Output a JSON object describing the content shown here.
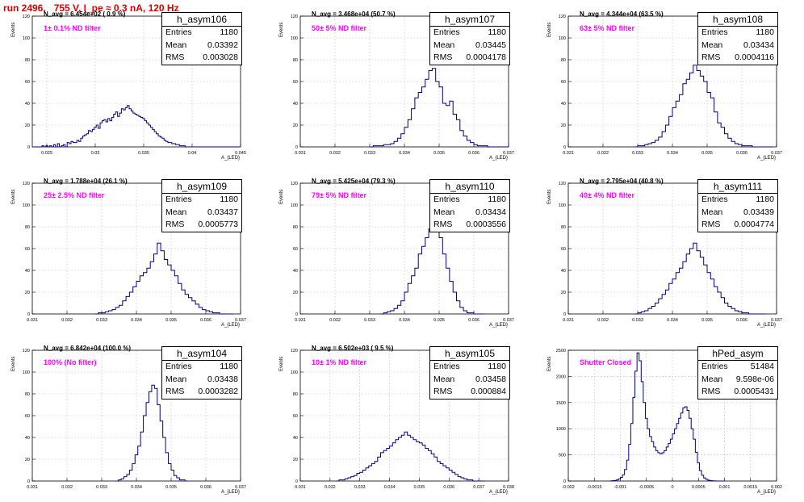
{
  "page": {
    "title": "run 2496,   755 V, I_pe ≈ 0.3 nA, 120 Hz"
  },
  "colors": {
    "histogram": "#000080",
    "grid": "#c8c8c8",
    "title": "#e00000",
    "filter_label": "#ff00ff"
  },
  "chart_data": [
    {
      "type": "bar",
      "name": "h_asym106",
      "ylabel": "Events",
      "xlabel": "A_{LED}",
      "navg": "N_avg = 6.454e+02 ( 0.9 %)",
      "filter": "1± 0.1% ND filter",
      "stats": {
        "entries": "1180",
        "mean": "0.03392",
        "rms": "0.003028"
      },
      "xlim": [
        0.0235,
        0.045
      ],
      "ylim": [
        0,
        120
      ],
      "xticks": [
        0.025,
        0.03,
        0.035,
        0.04,
        0.045
      ],
      "xtick_labels": [
        "0.025",
        "0.03",
        "0.035",
        "0.04",
        "0.045"
      ],
      "yticks": [
        0,
        20,
        40,
        60,
        80,
        100,
        120
      ],
      "bin_lo": 0.0235,
      "bin_width": 0.0002,
      "values": [
        0,
        0,
        0,
        0,
        0,
        1,
        0,
        1,
        0,
        1,
        0,
        2,
        0,
        3,
        0,
        1,
        2,
        0,
        4,
        3,
        5,
        4,
        4,
        6,
        5,
        8,
        10,
        11,
        12,
        15,
        14,
        16,
        18,
        20,
        17,
        22,
        24,
        25,
        23,
        26,
        24,
        27,
        30,
        32,
        28,
        31,
        35,
        34,
        36,
        38,
        35,
        33,
        31,
        30,
        29,
        28,
        27,
        26,
        24,
        22,
        20,
        18,
        16,
        14,
        12,
        10,
        9,
        8,
        6,
        5,
        4,
        4,
        3,
        3,
        2,
        2,
        1,
        1,
        1,
        0,
        0,
        0,
        0,
        0,
        0,
        0,
        0,
        0,
        0,
        0,
        0,
        0,
        0,
        0,
        0,
        0,
        0,
        0,
        0,
        0,
        0,
        0,
        0,
        0,
        0,
        0,
        0
      ]
    },
    {
      "type": "bar",
      "name": "h_asym107",
      "ylabel": "Events",
      "xlabel": "A_{LED}",
      "navg": "N_avg = 3.468e+04 (50.7 %)",
      "filter": "50± 5% ND filter",
      "stats": {
        "entries": "1180",
        "mean": "0.03445",
        "rms": "0.0004178"
      },
      "xlim": [
        0.031,
        0.037
      ],
      "ylim": [
        0,
        120
      ],
      "xticks": [
        0.031,
        0.032,
        0.033,
        0.034,
        0.035,
        0.036,
        0.037
      ],
      "xtick_labels": [
        "0.031",
        "0.032",
        "0.033",
        "0.034",
        "0.035",
        "0.036",
        "0.037"
      ],
      "yticks": [
        0,
        20,
        40,
        60,
        80,
        100,
        120
      ],
      "bin_lo": 0.033,
      "bin_width": 0.0001,
      "values": [
        0,
        1,
        1,
        1,
        2,
        2,
        3,
        5,
        8,
        12,
        18,
        25,
        35,
        45,
        50,
        55,
        62,
        70,
        72,
        60,
        55,
        40,
        38,
        42,
        30,
        25,
        15,
        10,
        6,
        4,
        2,
        1,
        1,
        1,
        0,
        0,
        0,
        0,
        0,
        0
      ]
    },
    {
      "type": "bar",
      "name": "h_asym108",
      "ylabel": "Events",
      "xlabel": "A_{LED}",
      "navg": "N_avg = 4.344e+04 (63.5 %)",
      "filter": "63± 5% ND filter",
      "stats": {
        "entries": "1180",
        "mean": "0.03434",
        "rms": "0.0004116"
      },
      "xlim": [
        0.031,
        0.037
      ],
      "ylim": [
        0,
        120
      ],
      "xticks": [
        0.031,
        0.032,
        0.033,
        0.034,
        0.035,
        0.036,
        0.037
      ],
      "xtick_labels": [
        "0.031",
        "0.032",
        "0.033",
        "0.034",
        "0.035",
        "0.036",
        "0.037"
      ],
      "yticks": [
        0,
        20,
        40,
        60,
        80,
        100,
        120
      ],
      "bin_lo": 0.0329,
      "bin_width": 0.0001,
      "values": [
        0,
        1,
        1,
        2,
        3,
        4,
        6,
        9,
        14,
        20,
        28,
        36,
        42,
        48,
        58,
        62,
        68,
        75,
        70,
        65,
        60,
        50,
        45,
        32,
        22,
        18,
        12,
        8,
        5,
        3,
        2,
        1,
        1,
        1,
        0,
        0,
        0,
        0,
        0,
        0
      ]
    },
    {
      "type": "bar",
      "name": "h_asym109",
      "ylabel": "Events",
      "xlabel": "A_{LED}",
      "navg": "N_avg = 1.788e+04 (26.1 %)",
      "filter": "25± 2.5% ND filter",
      "stats": {
        "entries": "1180",
        "mean": "0.03437",
        "rms": "0.0005773"
      },
      "xlim": [
        0.031,
        0.037
      ],
      "ylim": [
        0,
        120
      ],
      "xticks": [
        0.031,
        0.032,
        0.033,
        0.034,
        0.035,
        0.036,
        0.037
      ],
      "xtick_labels": [
        "0.031",
        "0.032",
        "0.033",
        "0.034",
        "0.035",
        "0.036",
        "0.037"
      ],
      "yticks": [
        0,
        20,
        40,
        60,
        80,
        100,
        120
      ],
      "bin_lo": 0.0328,
      "bin_width": 0.0001,
      "values": [
        0,
        1,
        1,
        2,
        3,
        4,
        6,
        8,
        12,
        16,
        20,
        25,
        30,
        35,
        38,
        42,
        48,
        55,
        65,
        58,
        50,
        45,
        40,
        35,
        28,
        22,
        18,
        15,
        12,
        9,
        6,
        4,
        3,
        2,
        1,
        1,
        0,
        0,
        0,
        0
      ]
    },
    {
      "type": "bar",
      "name": "h_asym110",
      "ylabel": "Events",
      "xlabel": "A_{LED}",
      "navg": "N_avg = 5.425e+04 (79.3 %)",
      "filter": "79± 5% ND filter",
      "stats": {
        "entries": "1180",
        "mean": "0.03434",
        "rms": "0.0003556"
      },
      "xlim": [
        0.031,
        0.037
      ],
      "ylim": [
        0,
        120
      ],
      "xticks": [
        0.031,
        0.032,
        0.033,
        0.034,
        0.035,
        0.036,
        0.037
      ],
      "xtick_labels": [
        "0.031",
        "0.032",
        "0.033",
        "0.034",
        "0.035",
        "0.036",
        "0.037"
      ],
      "yticks": [
        0,
        20,
        40,
        60,
        80,
        100,
        120
      ],
      "bin_lo": 0.0333,
      "bin_width": 0.0001,
      "values": [
        0,
        1,
        2,
        3,
        5,
        8,
        12,
        20,
        28,
        35,
        42,
        55,
        62,
        70,
        78,
        85,
        80,
        70,
        55,
        42,
        30,
        20,
        12,
        6,
        3,
        1,
        1,
        0,
        0,
        0
      ]
    },
    {
      "type": "bar",
      "name": "h_asym111",
      "ylabel": "Events",
      "xlabel": "A_{LED}",
      "navg": "N_avg = 2.795e+04 (40.8 %)",
      "filter": "40± 4% ND filter",
      "stats": {
        "entries": "1180",
        "mean": "0.03439",
        "rms": "0.0004774"
      },
      "xlim": [
        0.031,
        0.037
      ],
      "ylim": [
        0,
        120
      ],
      "xticks": [
        0.031,
        0.032,
        0.033,
        0.034,
        0.035,
        0.036,
        0.037
      ],
      "xtick_labels": [
        "0.031",
        "0.032",
        "0.033",
        "0.034",
        "0.035",
        "0.036",
        "0.037"
      ],
      "yticks": [
        0,
        20,
        40,
        60,
        80,
        100,
        120
      ],
      "bin_lo": 0.0329,
      "bin_width": 0.0001,
      "values": [
        0,
        1,
        2,
        3,
        5,
        7,
        10,
        14,
        18,
        22,
        28,
        32,
        38,
        42,
        48,
        55,
        60,
        65,
        58,
        52,
        45,
        38,
        32,
        25,
        20,
        15,
        10,
        7,
        5,
        3,
        2,
        1,
        1,
        0,
        0,
        0,
        0,
        0
      ]
    },
    {
      "type": "bar",
      "name": "h_asym104",
      "ylabel": "Events",
      "xlabel": "A_{LED}",
      "navg": "N_avg = 6.842e+04 (100.0 %)",
      "filter": "100% (No filter)",
      "stats": {
        "entries": "1180",
        "mean": "0.03438",
        "rms": "0.0003282"
      },
      "xlim": [
        0.031,
        0.037
      ],
      "ylim": [
        0,
        120
      ],
      "xticks": [
        0.031,
        0.032,
        0.033,
        0.034,
        0.035,
        0.036,
        0.037
      ],
      "xtick_labels": [
        "0.031",
        "0.032",
        "0.033",
        "0.034",
        "0.035",
        "0.036",
        "0.037"
      ],
      "yticks": [
        0,
        20,
        40,
        60,
        80,
        100,
        120
      ],
      "bin_lo": 0.0334,
      "bin_width": 8e-05,
      "values": [
        0,
        1,
        2,
        4,
        6,
        10,
        16,
        24,
        32,
        45,
        60,
        72,
        82,
        88,
        85,
        70,
        55,
        40,
        26,
        16,
        10,
        5,
        3,
        1,
        1,
        0
      ]
    },
    {
      "type": "bar",
      "name": "h_asym105",
      "ylabel": "Events",
      "xlabel": "A_{LED}",
      "navg": "N_avg = 6.502e+03 ( 9.5 %)",
      "filter": "10± 1% ND filter",
      "stats": {
        "entries": "1180",
        "mean": "0.03458",
        "rms": "0.000884"
      },
      "xlim": [
        0.031,
        0.038
      ],
      "ylim": [
        0,
        120
      ],
      "xticks": [
        0.031,
        0.032,
        0.033,
        0.034,
        0.035,
        0.036,
        0.037,
        0.038
      ],
      "xtick_labels": [
        "0.031",
        "0.032",
        "0.033",
        "0.034",
        "0.035",
        "0.036",
        "0.037",
        "0.038"
      ],
      "yticks": [
        0,
        20,
        40,
        60,
        80,
        100,
        120
      ],
      "bin_lo": 0.0322,
      "bin_width": 0.0001,
      "values": [
        0,
        1,
        1,
        2,
        3,
        4,
        5,
        7,
        8,
        10,
        12,
        14,
        16,
        18,
        22,
        26,
        28,
        30,
        32,
        35,
        38,
        40,
        42,
        45,
        42,
        40,
        38,
        36,
        35,
        33,
        30,
        28,
        25,
        22,
        18,
        16,
        14,
        12,
        10,
        8,
        6,
        4,
        3,
        2,
        1,
        1,
        0,
        0,
        0,
        0
      ]
    },
    {
      "type": "bar",
      "name": "hPed_asym",
      "ylabel": "Events",
      "xlabel": "A_{LED}",
      "navg": "",
      "filter": "Shutter Closed",
      "stats": {
        "entries": "51484",
        "mean": "9.598e-06",
        "rms": "0.0005431"
      },
      "xlim": [
        -0.002,
        0.002
      ],
      "ylim": [
        0,
        2500
      ],
      "xticks": [
        -0.002,
        -0.0015,
        -0.001,
        -0.0005,
        0,
        0.0005,
        0.001,
        0.0015,
        0.002
      ],
      "xtick_labels": [
        "-0.002",
        "-0.0015",
        "-0.001",
        "-0.0005",
        "0",
        "0.0005",
        "0.001",
        "0.0015",
        "0.002"
      ],
      "yticks": [
        0,
        500,
        1000,
        1500,
        2000,
        2500
      ],
      "bin_lo": -0.0012,
      "bin_width": 4e-05,
      "values": [
        2,
        5,
        10,
        20,
        40,
        70,
        120,
        220,
        400,
        700,
        1100,
        1600,
        2100,
        2450,
        2300,
        1900,
        1500,
        1200,
        1000,
        850,
        750,
        650,
        580,
        540,
        520,
        540,
        580,
        650,
        720,
        800,
        900,
        1000,
        1100,
        1200,
        1300,
        1400,
        1420,
        1350,
        1200,
        1000,
        800,
        550,
        350,
        200,
        110,
        60,
        30,
        15,
        8,
        4,
        2,
        0,
        0,
        0,
        0
      ]
    }
  ]
}
